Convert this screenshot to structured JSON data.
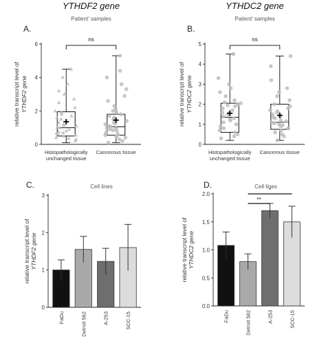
{
  "chart_data": [
    {
      "type": "box",
      "panel": "A.",
      "gene_title": "YTHDF2 gene",
      "title": "Patient' samples",
      "ylabel_line1": "relative transcript level of",
      "ylabel_line2": "YTHDF2 gene",
      "ylim": [
        0,
        6
      ],
      "yticks": [
        0,
        2,
        4,
        6
      ],
      "categories": [
        "Histopathologically unchanged tissue",
        "Cancerous tissue"
      ],
      "category_lines": [
        [
          "Histopathologically",
          "unchanged tissue"
        ],
        [
          "Cancerous tissue"
        ]
      ],
      "boxes": [
        {
          "min": 0.1,
          "q1": 0.5,
          "median": 1.0,
          "q3": 1.95,
          "max": 4.5,
          "mean": 1.35
        },
        {
          "min": 0.1,
          "q1": 0.55,
          "median": 1.05,
          "q3": 1.8,
          "max": 5.3,
          "mean": 1.45
        }
      ],
      "points": [
        [
          0.2,
          0.3,
          0.4,
          0.5,
          0.55,
          0.6,
          0.7,
          0.8,
          0.9,
          1.0,
          1.0,
          1.1,
          1.2,
          1.3,
          1.4,
          1.5,
          1.6,
          1.7,
          1.8,
          1.9,
          2.0,
          2.2,
          2.5,
          2.7,
          3.0,
          3.2,
          3.6,
          4.0,
          4.5,
          0.35,
          0.65,
          0.75,
          1.15
        ],
        [
          0.1,
          0.2,
          0.3,
          0.4,
          0.5,
          0.6,
          0.7,
          0.8,
          0.9,
          1.0,
          1.1,
          1.2,
          1.3,
          1.4,
          1.5,
          1.6,
          1.7,
          1.8,
          1.9,
          2.0,
          2.3,
          2.6,
          2.9,
          3.3,
          3.6,
          4.0,
          4.4,
          5.3,
          0.45,
          0.55,
          0.85,
          0.95,
          1.25,
          1.05,
          2.1
        ]
      ],
      "significance": "ns",
      "grid": false
    },
    {
      "type": "box",
      "panel": "B.",
      "gene_title": "YTHDC2 gene",
      "title": "Patient' samples",
      "ylabel_line1": "relative transcript level of",
      "ylabel_line2": "YTHDC2 gene",
      "ylim": [
        0,
        5
      ],
      "yticks": [
        0,
        1,
        2,
        3,
        4,
        5
      ],
      "categories": [
        "Histopathologically unchanged tissue",
        "Cancerous tissue"
      ],
      "category_lines": [
        [
          "Histopathologically",
          "unchanged tissue"
        ],
        [
          "Cancerous tissue"
        ]
      ],
      "boxes": [
        {
          "min": 0.2,
          "q1": 0.6,
          "median": 1.35,
          "q3": 2.05,
          "max": 4.5,
          "mean": 1.55
        },
        {
          "min": 0.2,
          "q1": 0.75,
          "median": 1.1,
          "q3": 2.0,
          "max": 4.4,
          "mean": 1.45
        }
      ],
      "points": [
        [
          0.3,
          0.5,
          0.6,
          0.7,
          0.8,
          0.9,
          1.0,
          1.1,
          1.2,
          1.3,
          1.4,
          1.5,
          1.6,
          1.7,
          1.8,
          1.9,
          2.0,
          2.1,
          2.2,
          2.4,
          2.6,
          2.8,
          3.0,
          3.3,
          4.5,
          0.4,
          1.25,
          1.55,
          1.95,
          2.05
        ],
        [
          0.2,
          0.4,
          0.6,
          0.7,
          0.8,
          0.9,
          1.0,
          1.05,
          1.1,
          1.2,
          1.3,
          1.4,
          1.5,
          1.6,
          1.7,
          1.8,
          1.9,
          2.0,
          2.2,
          2.4,
          2.6,
          2.8,
          3.2,
          3.9,
          4.4,
          0.5,
          0.95,
          1.15,
          1.35,
          1.65
        ]
      ],
      "significance": "ns",
      "grid": false
    },
    {
      "type": "bar",
      "panel": "C.",
      "title": "Cell lines",
      "ylabel_line1": "relative transcript level of",
      "ylabel_line2": "YTHDF2 gene",
      "ylim": [
        0,
        3
      ],
      "yticks": [
        0,
        1,
        2,
        3
      ],
      "categories": [
        "FaDu",
        "Detroit 562",
        "A-253",
        "SCC-15"
      ],
      "values": [
        1.0,
        1.55,
        1.23,
        1.6
      ],
      "errors": [
        0.27,
        0.35,
        0.35,
        0.62
      ],
      "colors": [
        "#111111",
        "#a9a9a9",
        "#6e6e6e",
        "#dcdcdc"
      ],
      "grid": false
    },
    {
      "type": "bar",
      "panel": "D.",
      "title": "Cell lines",
      "ylabel_line1": "relative transcript level of",
      "ylabel_line2": "YTHDC2 gene",
      "ylim": [
        0,
        2.0
      ],
      "yticks": [
        0.0,
        0.5,
        1.0,
        1.5,
        2.0
      ],
      "ytick_labels": [
        "0.0",
        "0.5",
        "1.0",
        "1.5",
        "2.0"
      ],
      "categories": [
        "FaDu",
        "Detroit 562",
        "A-253",
        "SCC-15"
      ],
      "values": [
        1.08,
        0.79,
        1.7,
        1.5
      ],
      "errors": [
        0.24,
        0.14,
        0.13,
        0.28
      ],
      "colors": [
        "#111111",
        "#a9a9a9",
        "#6e6e6e",
        "#dcdcdc"
      ],
      "significance": [
        {
          "from": 1,
          "to": 2,
          "label": "**"
        },
        {
          "from": 1,
          "to": 3,
          "label": "*"
        }
      ],
      "grid": false
    }
  ]
}
